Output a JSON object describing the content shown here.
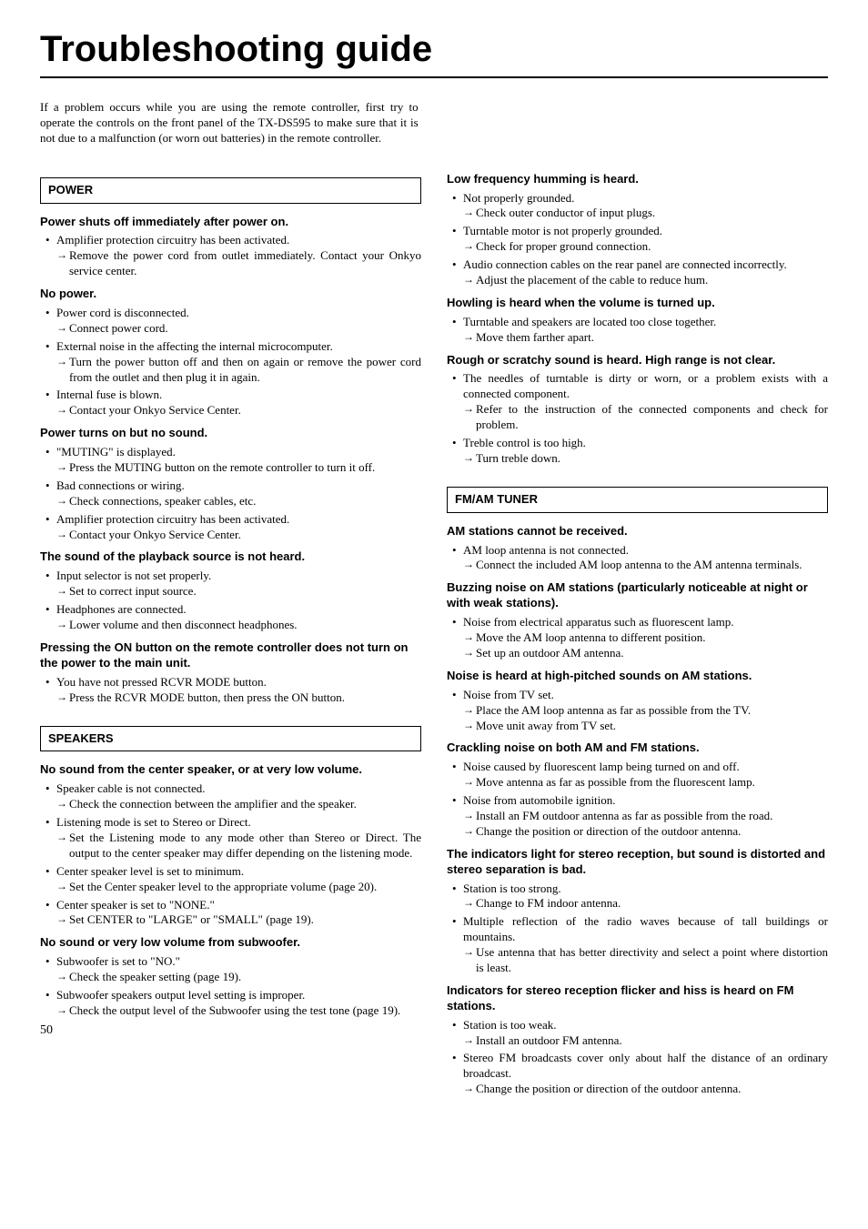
{
  "title": "Troubleshooting guide",
  "intro": "If a problem occurs while you are using the remote controller, first try to operate the controls on the front panel of the TX-DS595 to make sure that it is not due to a malfunction (or worn out batteries) in the remote controller.",
  "pageNumber": "50",
  "power": {
    "header": "POWER",
    "s1": {
      "h": "Power shuts off immediately after power on.",
      "i1": "Amplifier protection circuitry has been activated.",
      "i1s1": "Remove the power cord from outlet immediately. Contact your Onkyo service center."
    },
    "s2": {
      "h": "No power.",
      "i1": "Power cord is disconnected.",
      "i1s1": "Connect power cord.",
      "i2": "External noise in the affecting the internal microcomputer.",
      "i2s1": "Turn the power button off and then on again or remove the power cord from the outlet and then plug it in again.",
      "i3": "Internal fuse is blown.",
      "i3s1": "Contact your Onkyo Service Center."
    },
    "s3": {
      "h": "Power turns on but no sound.",
      "i1": "\"MUTING\" is displayed.",
      "i1s1": "Press the MUTING button on the remote controller to turn it off.",
      "i2": "Bad connections or wiring.",
      "i2s1": "Check connections, speaker cables, etc.",
      "i3": "Amplifier protection circuitry has been activated.",
      "i3s1": "Contact your Onkyo Service Center."
    },
    "s4": {
      "h": "The sound of the playback source is not heard.",
      "i1": "Input selector is not set properly.",
      "i1s1": "Set to correct input source.",
      "i2": "Headphones are connected.",
      "i2s1": "Lower volume and then disconnect headphones."
    },
    "s5": {
      "h": "Pressing the ON button on the remote controller does not turn on the power to the main unit.",
      "i1": "You have not pressed RCVR MODE button.",
      "i1s1": "Press the RCVR MODE button, then press the ON button."
    }
  },
  "speakers": {
    "header": "SPEAKERS",
    "s1": {
      "h": "No sound from the center speaker, or at very low volume.",
      "i1": "Speaker cable is not connected.",
      "i1s1": "Check the connection between the amplifier and the speaker.",
      "i2": "Listening mode is set to Stereo or Direct.",
      "i2s1": "Set the Listening mode to any mode other than Stereo or Direct. The output to the center speaker may differ depending on the listening mode.",
      "i3": "Center speaker level is set to minimum.",
      "i3s1": "Set the Center speaker level to the appropriate volume (page 20).",
      "i4": "Center speaker is set to \"NONE.\"",
      "i4s1": "Set CENTER to \"LARGE\" or \"SMALL\" (page 19)."
    },
    "s2": {
      "h": "No sound or very low volume from subwoofer.",
      "i1": "Subwoofer is set to \"NO.\"",
      "i1s1": "Check the speaker setting (page 19).",
      "i2": "Subwoofer speakers output level setting is improper.",
      "i2s1": "Check the output level of the Subwoofer using the test tone (page 19)."
    }
  },
  "right1": {
    "s1": {
      "h": "Low frequency humming is heard.",
      "i1": "Not properly grounded.",
      "i1s1": "Check outer conductor of input plugs.",
      "i2": "Turntable motor is not properly grounded.",
      "i2s1": "Check for proper ground connection.",
      "i3": "Audio connection cables on the rear panel are connected incorrectly.",
      "i3s1": "Adjust the placement of the cable to reduce hum."
    },
    "s2": {
      "h": "Howling is heard when the volume is turned up.",
      "i1": "Turntable and speakers are located too close together.",
      "i1s1": "Move them farther apart."
    },
    "s3": {
      "h": "Rough or scratchy sound is heard. High range is not clear.",
      "i1": "The needles of turntable is dirty or worn, or a problem exists with a connected component.",
      "i1s1": "Refer to the instruction of the connected components and check for problem.",
      "i2": "Treble control is too high.",
      "i2s1": "Turn treble down."
    }
  },
  "tuner": {
    "header": "FM/AM TUNER",
    "s1": {
      "h": "AM stations cannot be received.",
      "i1": "AM loop antenna is not connected.",
      "i1s1": "Connect the included AM loop antenna to the AM antenna terminals."
    },
    "s2": {
      "h": "Buzzing noise on AM stations (particularly noticeable at night or with weak stations).",
      "i1": "Noise from electrical apparatus such as fluorescent lamp.",
      "i1s1": "Move the AM loop antenna to different position.",
      "i1s2": "Set up an outdoor AM antenna."
    },
    "s3": {
      "h": "Noise is heard at high-pitched sounds on AM stations.",
      "i1": "Noise from TV set.",
      "i1s1": "Place the AM loop antenna as far as possible from the TV.",
      "i1s2": "Move unit away from TV set."
    },
    "s4": {
      "h": "Crackling noise on both AM and FM stations.",
      "i1": "Noise caused by fluorescent lamp being turned on and off.",
      "i1s1": "Move antenna as far as possible from the fluorescent lamp.",
      "i2": "Noise from automobile ignition.",
      "i2s1": "Install an FM outdoor antenna as far as possible from the road.",
      "i2s2": "Change the position or direction of the outdoor antenna."
    },
    "s5": {
      "h": "The indicators light for stereo reception, but sound is distorted and stereo separation is bad.",
      "i1": "Station is too strong.",
      "i1s1": "Change to FM indoor antenna.",
      "i2": "Multiple reflection of the radio waves because of tall buildings or mountains.",
      "i2s1": "Use antenna that has better directivity and select a point where distortion is least."
    },
    "s6": {
      "h": "Indicators for stereo reception flicker and hiss is heard on FM stations.",
      "i1": "Station is too weak.",
      "i1s1": "Install an outdoor FM antenna.",
      "i2": "Stereo FM broadcasts cover only about half the distance of an ordinary broadcast.",
      "i2s1": "Change the position or direction of the outdoor antenna."
    }
  }
}
